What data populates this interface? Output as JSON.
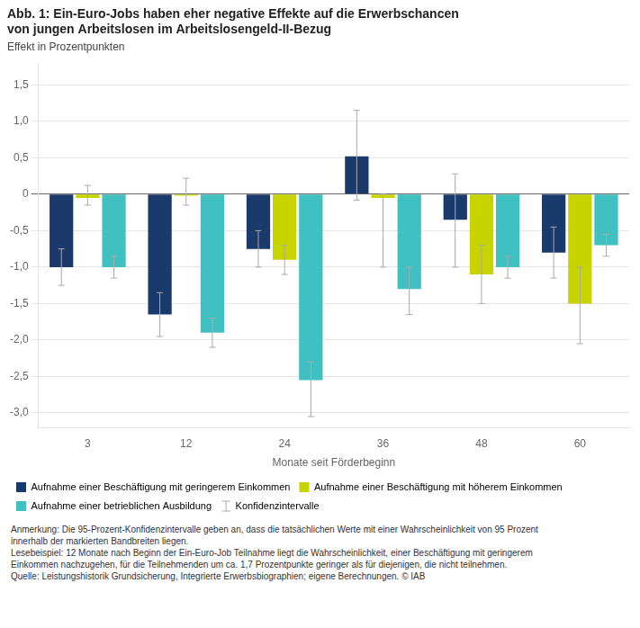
{
  "chart_data": {
    "type": "bar",
    "title": [
      "Abb. 1: Ein-Euro-Jobs haben eher negative Effekte auf die Erwerbschancen",
      "von jungen Arbeitslosen im Arbeitslosengeld-II-Bezug"
    ],
    "subtitle": "Effekt in Prozentpunkten",
    "xlabel": "Monate seit Förderbeginn",
    "categories": [
      "3",
      "12",
      "24",
      "36",
      "48",
      "60"
    ],
    "series": [
      {
        "name": "Aufnahme einer Beschäftigung mit geringerem Einkommen",
        "color": "#1a3a6b",
        "values": [
          -1.0,
          -1.65,
          -0.75,
          0.52,
          -0.35,
          -0.8
        ],
        "ci_lo": [
          -1.25,
          -1.95,
          -1.0,
          -0.08,
          -1.0,
          -1.15
        ],
        "ci_hi": [
          -0.75,
          -1.35,
          -0.5,
          1.15,
          0.28,
          -0.45
        ]
      },
      {
        "name": "Aufnahme einer Beschäftigung mit höherem Einkommen",
        "color": "#c8d400",
        "values": [
          -0.05,
          -0.02,
          -0.9,
          -0.05,
          -1.1,
          -1.5
        ],
        "ci_lo": [
          -0.15,
          -0.15,
          -1.1,
          -1.0,
          -1.5,
          -2.05
        ],
        "ci_hi": [
          0.12,
          0.22,
          -0.7,
          0.0,
          -0.7,
          -1.0
        ]
      },
      {
        "name": "Aufnahme einer betrieblichen Ausbildung",
        "color": "#40c0c0",
        "values": [
          -1.0,
          -1.9,
          -2.55,
          -1.3,
          -1.0,
          -0.7
        ],
        "ci_lo": [
          -1.15,
          -2.1,
          -3.05,
          -1.65,
          -1.15,
          -0.85
        ],
        "ci_hi": [
          -0.85,
          -1.7,
          -2.3,
          -1.0,
          -0.85,
          -0.55
        ]
      }
    ],
    "error_bar_label": "Konfidenzintervalle",
    "ylim": [
      -3.2,
      1.8
    ],
    "yticks": [
      {
        "value": -3.0,
        "label": "-3,0"
      },
      {
        "value": -2.5,
        "label": "-2,5"
      },
      {
        "value": -2.0,
        "label": "-2,0"
      },
      {
        "value": -1.5,
        "label": "-1,5"
      },
      {
        "value": -1.0,
        "label": "-1,0"
      },
      {
        "value": -0.5,
        "label": "-0,5"
      },
      0,
      {
        "value": 0.5,
        "label": "0,5"
      },
      {
        "value": 1.0,
        "label": "1,0"
      },
      {
        "value": 1.5,
        "label": "1,5"
      }
    ],
    "grid": true,
    "legend": "bottom",
    "notes": [
      "Anmerkung: Die 95-Prozent-Konfidenzintervalle geben an, dass die tatsächlichen Werte mit einer Wahrscheinlichkeit von 95 Prozent",
      "innerhalb der markierten Bandbreiten liegen.",
      "Lesebeispiel: 12 Monate nach Beginn der Ein-Euro-Job Teilnahme liegt die Wahrscheinlichkeit, einer Beschäftigung mit geringerem",
      "Einkommen nachzugehen, für die Teilnehmenden um ca. 1,7 Prozentpunkte geringer als für diejenigen, die nicht teilnehmen.",
      "Quelle: Leistungshistorik Grundsicherung, Integrierte Erwerbsbiographien; eigene Berechnungen. © IAB"
    ]
  }
}
